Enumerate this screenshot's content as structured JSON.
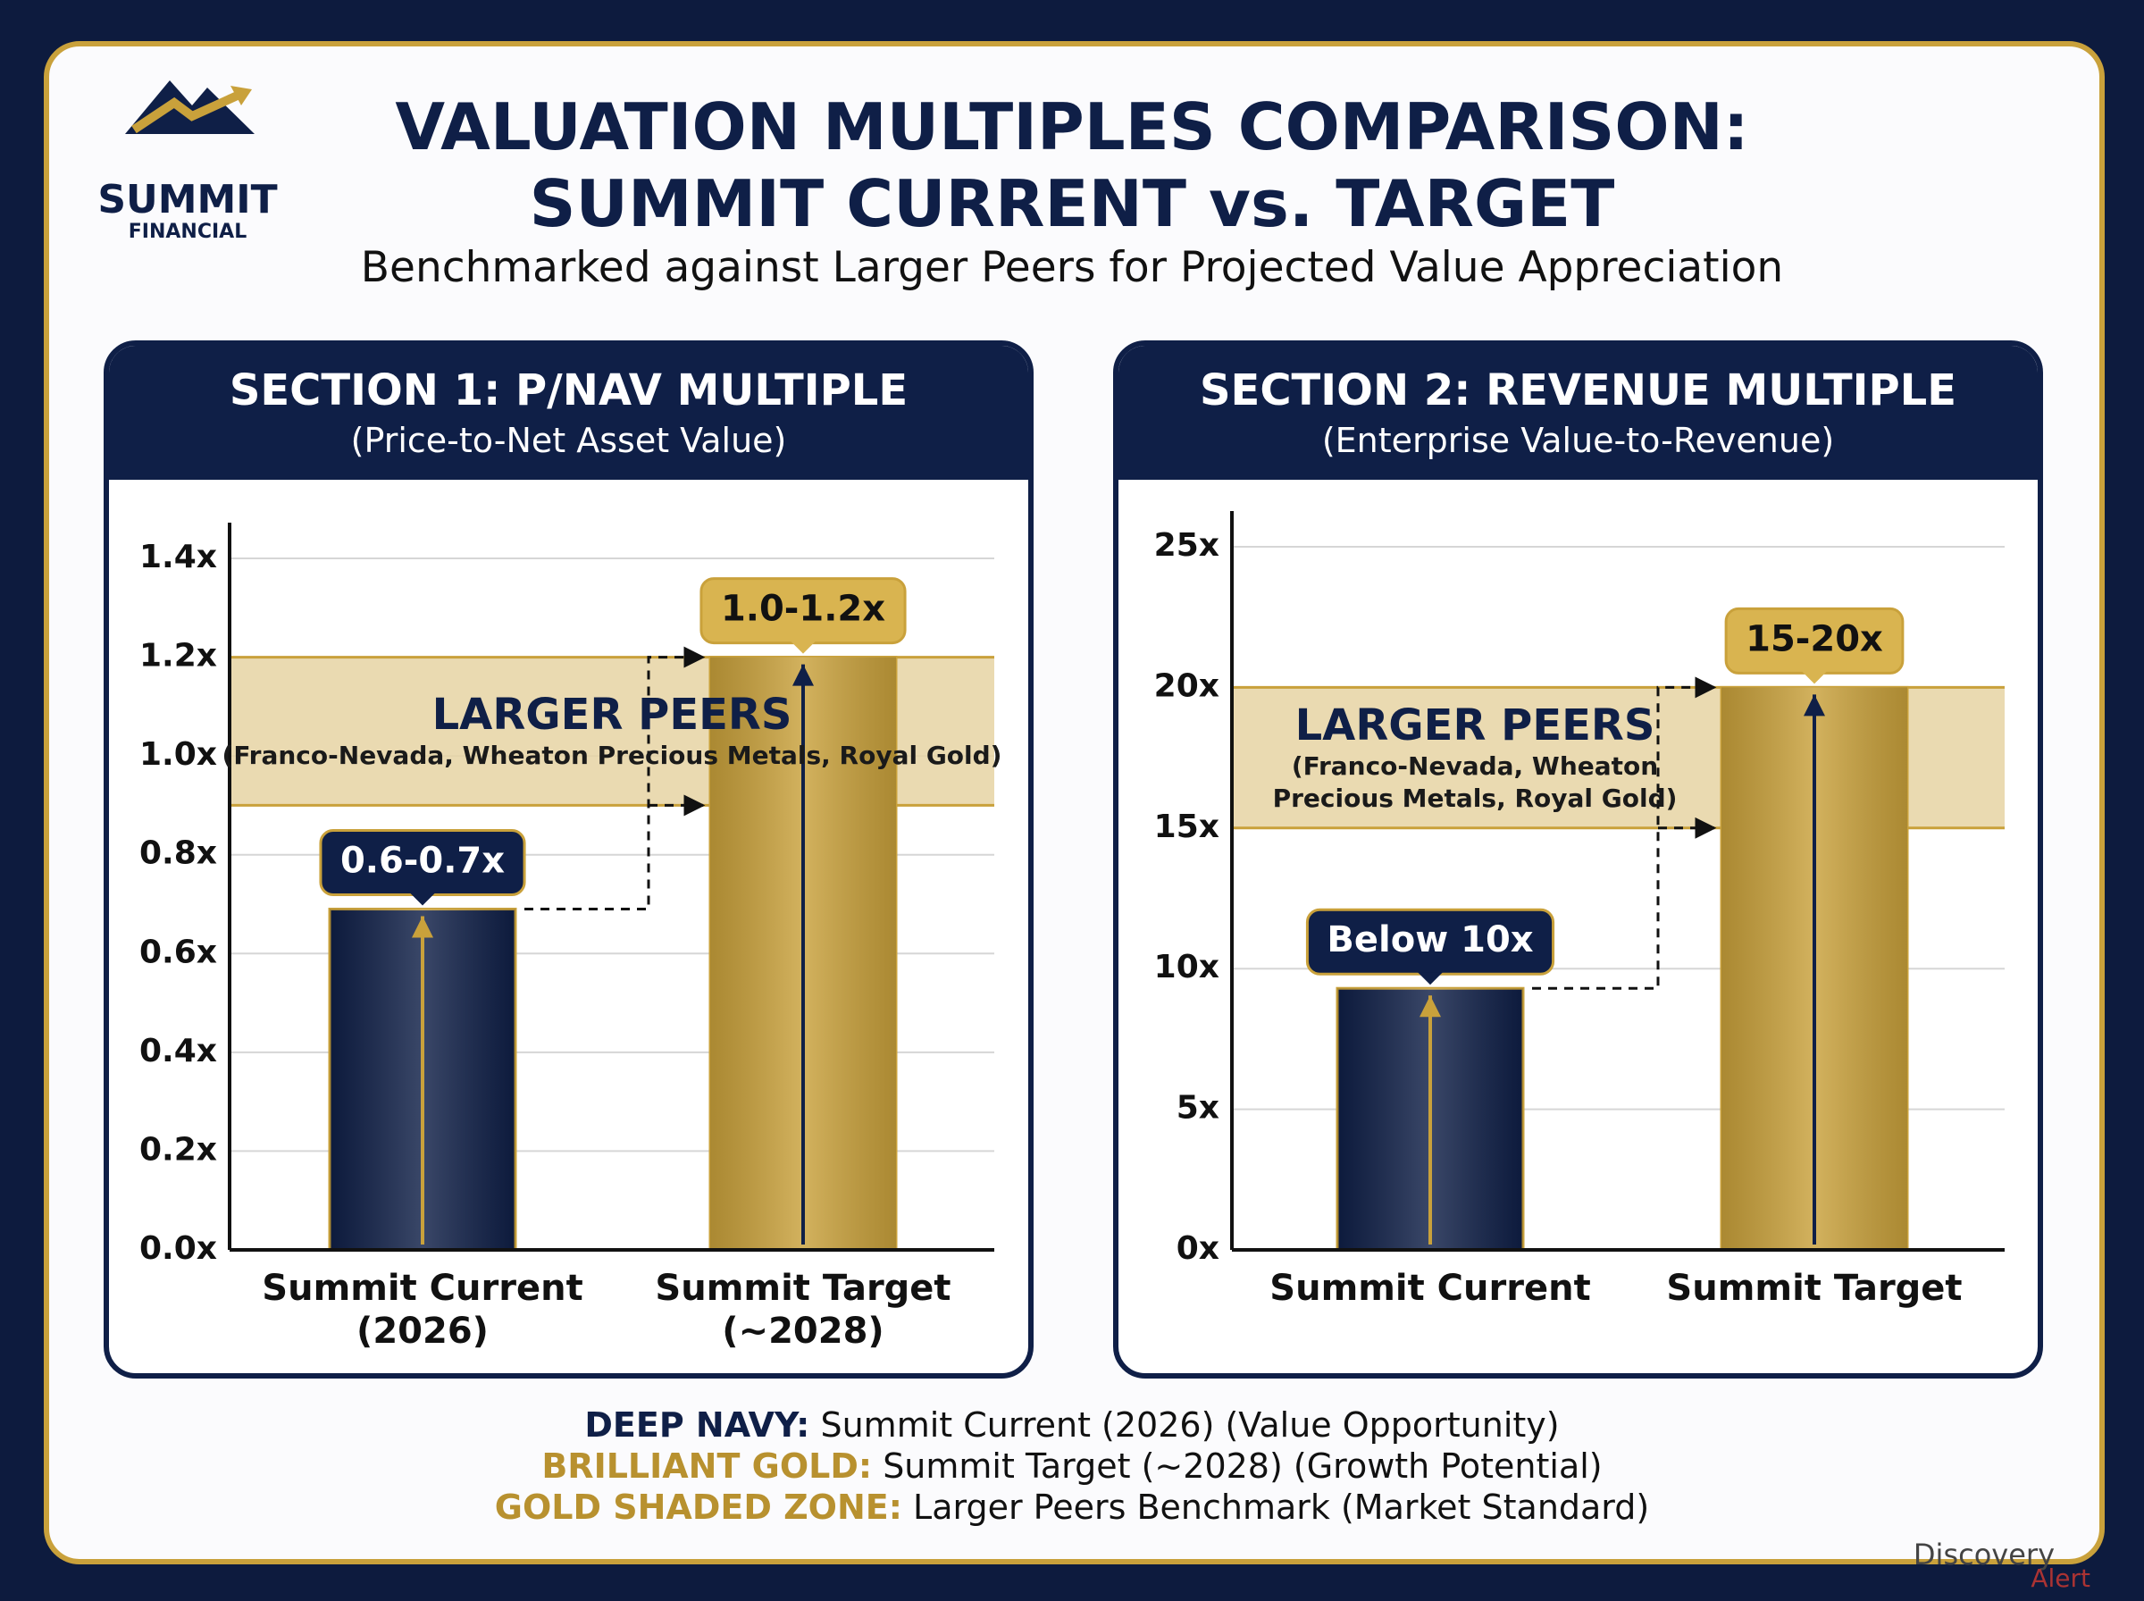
{
  "header": {
    "logo_name": "SUMMIT",
    "logo_sub": "FINANCIAL",
    "title_line1": "VALUATION MULTIPLES COMPARISON:",
    "title_line2": "SUMMIT CURRENT vs. TARGET",
    "subtitle": "Benchmarked against Larger Peers for Projected Value Appreciation"
  },
  "chart_data": [
    {
      "type": "bar",
      "title": "SECTION 1: P/NAV MULTIPLE",
      "subtitle": "(Price-to-Net Asset Value)",
      "categories": [
        "Summit Current (2026)",
        "Summit Target (~2028)"
      ],
      "values": [
        0.69,
        1.2
      ],
      "value_labels": [
        "0.6-0.7x",
        "1.0-1.2x"
      ],
      "colors": [
        "#0f1f47",
        "#c9a13b"
      ],
      "band": {
        "label": "LARGER PEERS",
        "sublabel": "(Franco-Nevada, Wheaton Precious Metals, Royal Gold)",
        "range": [
          0.9,
          1.2
        ],
        "color": "#e6d3a3"
      },
      "ylim": [
        0,
        1.4
      ],
      "yticks": [
        {
          "value": 0,
          "label": "0.0x"
        },
        {
          "value": 0.2,
          "label": "0.2x"
        },
        {
          "value": 0.4,
          "label": "0.4x"
        },
        {
          "value": 0.6,
          "label": "0.6x"
        },
        {
          "value": 0.8,
          "label": "0.8x"
        },
        {
          "value": 1.0,
          "label": "1.0x"
        },
        {
          "value": 1.2,
          "label": "1.2x"
        },
        {
          "value": 1.4,
          "label": "1.4x"
        }
      ],
      "grid": true
    },
    {
      "type": "bar",
      "title": "SECTION 2: REVENUE MULTIPLE",
      "subtitle": "(Enterprise Value-to-Revenue)",
      "categories": [
        "Summit Current",
        "Summit Target"
      ],
      "values": [
        9.3,
        20
      ],
      "value_labels": [
        "Below 10x",
        "15-20x"
      ],
      "colors": [
        "#0f1f47",
        "#c9a13b"
      ],
      "band": {
        "label": "LARGER PEERS",
        "sublabel": "(Franco-Nevada, Wheaton Precious Metals, Royal Gold)",
        "range": [
          15,
          20
        ],
        "color": "#e6d3a3"
      },
      "ylim": [
        0,
        25
      ],
      "yticks": [
        {
          "value": 0,
          "label": "0x"
        },
        {
          "value": 5,
          "label": "5x"
        },
        {
          "value": 10,
          "label": "10x"
        },
        {
          "value": 15,
          "label": "15x"
        },
        {
          "value": 20,
          "label": "20x"
        },
        {
          "value": 25,
          "label": "25x"
        }
      ],
      "grid": true
    }
  ],
  "legend": [
    {
      "key": "DEEP NAVY:",
      "text": "Summit Current (2026) (Value Opportunity)",
      "color": "#0f1f47"
    },
    {
      "key": "BRILLIANT GOLD:",
      "text": "Summit Target (~2028) (Growth Potential)",
      "color": "#b8912f"
    },
    {
      "key": "GOLD SHADED ZONE:",
      "text": "Larger Peers Benchmark (Market Standard)",
      "color": "#b8912f"
    }
  ],
  "watermark": {
    "line1": "Discovery",
    "line2": "Alert"
  }
}
